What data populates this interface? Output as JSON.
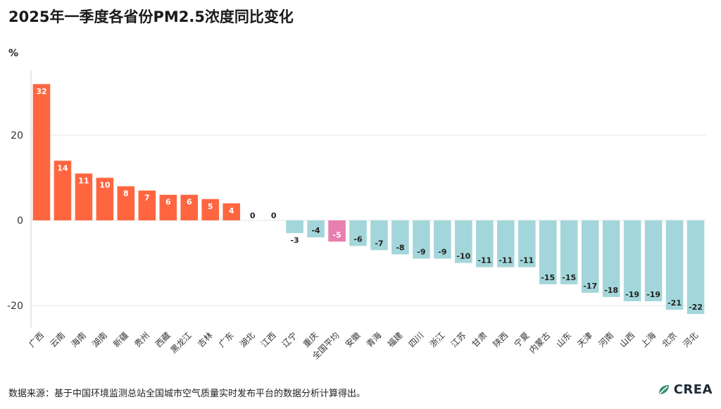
{
  "title": "2025年一季度各省份PM2.5浓度同比变化",
  "unit": "%",
  "source": "数据来源：基于中国环境监测总站全国城市空气质量实时发布平台的数据分析计算得出。",
  "brand": "CREA",
  "colors": {
    "increase": "#ff6640",
    "decrease": "#a3d6da",
    "average": "#e77fb0",
    "zero_label": "#222222"
  },
  "chart_data": {
    "type": "bar",
    "ylabel": "%",
    "ylim": [
      -25,
      35
    ],
    "yticks": [
      -20,
      0,
      20
    ],
    "ytick_labels": [
      "-20",
      "0",
      "20"
    ],
    "grid": true,
    "categories": [
      "广西",
      "云南",
      "海南",
      "湖南",
      "新疆",
      "贵州",
      "西藏",
      "黑龙江",
      "吉林",
      "广东",
      "湖北",
      "江西",
      "辽宁",
      "重庆",
      "全国平均",
      "安徽",
      "青海",
      "福建",
      "四川",
      "浙江",
      "江苏",
      "甘肃",
      "陕西",
      "宁夏",
      "内蒙古",
      "山东",
      "天津",
      "河南",
      "山西",
      "上海",
      "北京",
      "河北"
    ],
    "values": [
      32,
      14,
      11,
      10,
      8,
      7,
      6,
      6,
      5,
      4,
      0,
      0,
      -3,
      -4,
      -5,
      -6,
      -7,
      -8,
      -9,
      -9,
      -10,
      -11,
      -11,
      -11,
      -15,
      -15,
      -17,
      -18,
      -19,
      -19,
      -21,
      -22
    ],
    "value_labels": [
      "32",
      "14",
      "11",
      "10",
      "8",
      "7",
      "6",
      "6",
      "5",
      "4",
      "0",
      "0",
      "-3",
      "-4",
      "-5",
      "-6",
      "-7",
      "-8",
      "-9",
      "-9",
      "-10",
      "-11",
      "-11",
      "-11",
      "-15",
      "-15",
      "-17",
      "-18",
      "-19",
      "-19",
      "-21",
      "-22"
    ],
    "highlight_category": "全国平均"
  }
}
